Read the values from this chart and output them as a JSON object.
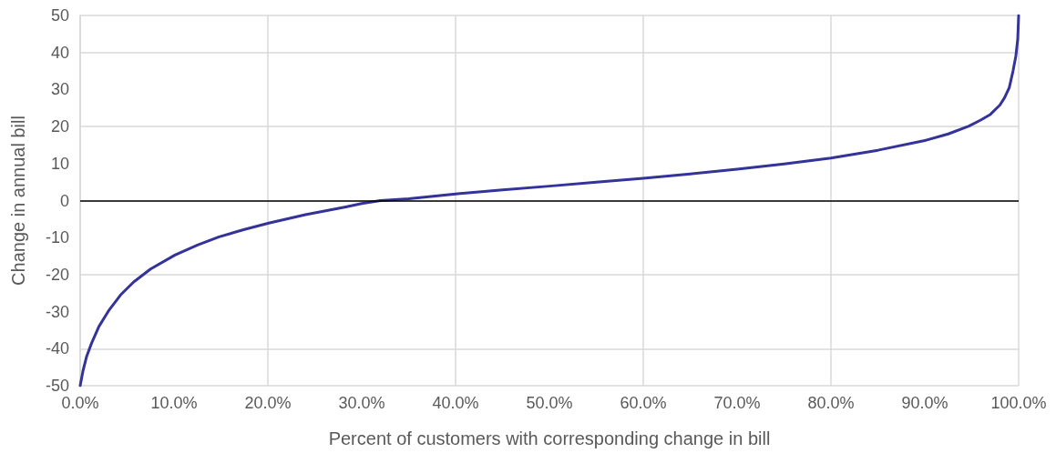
{
  "chart_data": {
    "type": "line",
    "xlabel": "Percent of customers with corresponding change in bill",
    "ylabel": "Change in annual bill",
    "x": [
      0,
      0.3,
      0.7,
      1.2,
      2,
      3.1,
      4.3,
      5.7,
      7.5,
      10.1,
      12.5,
      14.8,
      17.5,
      20.1,
      24,
      28.3,
      30,
      32,
      35,
      40,
      45,
      50,
      55,
      60,
      65,
      70,
      75,
      80,
      85,
      90,
      92.5,
      94.7,
      96,
      97,
      98,
      98.5,
      99,
      99.4,
      99.7,
      99.9,
      100
    ],
    "series": [
      {
        "color": "#333399",
        "values": [
          -50,
          -46,
          -42,
          -38.6,
          -34,
          -29.5,
          -25.5,
          -22,
          -18.5,
          -14.7,
          -12,
          -9.8,
          -7.8,
          -6.1,
          -3.8,
          -1.7,
          -0.8,
          0,
          0.5,
          1.8,
          2.9,
          3.9,
          5,
          6,
          7.2,
          8.5,
          9.9,
          11.5,
          13.6,
          16.2,
          18,
          20.1,
          21.8,
          23.3,
          25.8,
          27.8,
          30.5,
          35,
          39,
          43.5,
          50
        ]
      }
    ],
    "xlim": [
      0,
      100
    ],
    "xticks": [
      {
        "value": 0,
        "label": "0.0%"
      },
      {
        "value": 10,
        "label": "10.0%"
      },
      {
        "value": 20,
        "label": "20.0%"
      },
      {
        "value": 30,
        "label": "30.0%"
      },
      {
        "value": 40,
        "label": "40.0%"
      },
      {
        "value": 50,
        "label": "50.0%"
      },
      {
        "value": 60,
        "label": "60.0%"
      },
      {
        "value": 70,
        "label": "70.0%"
      },
      {
        "value": 80,
        "label": "80.0%"
      },
      {
        "value": 90,
        "label": "90.0%"
      },
      {
        "value": 100,
        "label": "100.0%"
      }
    ],
    "ylim": [
      -50,
      50
    ],
    "yticks": [
      -50,
      -40,
      -30,
      -20,
      -10,
      0,
      10,
      20,
      30,
      40,
      50
    ],
    "grid": true,
    "marker": "none",
    "line_style": "solid",
    "ref_lines": [
      {
        "axis": "y",
        "value": 0,
        "color": "#000000",
        "line_style": "solid"
      }
    ]
  }
}
